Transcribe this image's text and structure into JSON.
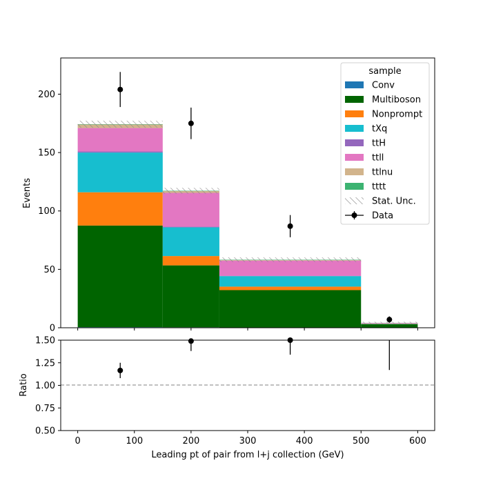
{
  "chart_data": {
    "type": "bar",
    "stacked": true,
    "x_edges": [
      0,
      150,
      250,
      500,
      600
    ],
    "xlabel": "Leading pt of pair from l+j collection (GeV)",
    "xlim": [
      -30,
      630
    ],
    "xticks": [
      0,
      100,
      200,
      300,
      400,
      500,
      600
    ],
    "ylabel": "Events",
    "ylim": [
      0,
      231
    ],
    "yticks": [
      0,
      50,
      100,
      150,
      200
    ],
    "legend": {
      "title": "sample",
      "position": "top-right"
    },
    "series": [
      {
        "name": "Conv",
        "color": "#1f77b4",
        "values": [
          0.5,
          0.4,
          0.2,
          0.0
        ]
      },
      {
        "name": "Multiboson",
        "color": "#006400",
        "values": [
          87,
          53,
          32,
          3
        ]
      },
      {
        "name": "Nonprompt",
        "color": "#ff7f0e",
        "values": [
          28.5,
          8,
          3,
          0.2
        ]
      },
      {
        "name": "tXq",
        "color": "#17becf",
        "values": [
          34,
          24.6,
          9,
          0.3
        ]
      },
      {
        "name": "ttH",
        "color": "#9467bd",
        "values": [
          1,
          0.5,
          0.3,
          0.0
        ]
      },
      {
        "name": "ttll",
        "color": "#e377c2",
        "values": [
          20,
          29,
          13,
          0.5
        ]
      },
      {
        "name": "ttlnu",
        "color": "#d2b48c",
        "values": [
          3,
          1.5,
          0.5,
          0.1
        ]
      },
      {
        "name": "tttt",
        "color": "#3cb371",
        "values": [
          0.3,
          0.3,
          0.3,
          0.1
        ]
      }
    ],
    "stat_unc": {
      "name": "Stat. Unc.",
      "values": [
        3,
        2.5,
        2,
        1
      ]
    },
    "data_points": {
      "name": "Data",
      "x": [
        75,
        200,
        375,
        550
      ],
      "y": [
        204,
        175,
        87,
        7
      ],
      "err": [
        15,
        13.5,
        9.5,
        2.7
      ]
    },
    "ratio": {
      "ylabel": "Ratio",
      "ylim": [
        0.5,
        1.5
      ],
      "yticks": [
        "0.50",
        "0.75",
        "1.00",
        "1.25",
        "1.50"
      ],
      "reference": 1.0,
      "points": [
        {
          "x": 75,
          "y": 1.165,
          "err": 0.085
        },
        {
          "x": 200,
          "y": 1.49,
          "err": 0.11
        },
        {
          "x": 375,
          "y": 1.5,
          "err": 0.16
        },
        {
          "x": 550,
          "y": 1.75,
          "err": 0.58
        }
      ]
    }
  }
}
